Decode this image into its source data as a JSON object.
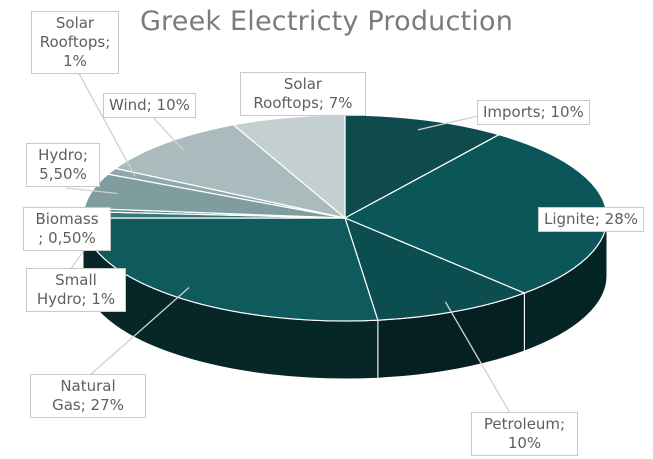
{
  "chart_data": {
    "type": "pie",
    "title": "Greek Electricty Production",
    "slices": [
      {
        "label": "Imports; 10%",
        "value": 10,
        "color": "#0f4a4c"
      },
      {
        "label": "Lignite; 28%",
        "value": 28,
        "color": "#0a5659"
      },
      {
        "label": "Petroleum; 10%",
        "value": 10,
        "color": "#0c4d50"
      },
      {
        "label": "Natural Gas; 27%",
        "value": 27,
        "color": "#0e5a5d"
      },
      {
        "label": "Small Hydro; 1%",
        "value": 1,
        "color": "#36787a"
      },
      {
        "label": "Biomass ; 0,50%",
        "value": 0.5,
        "color": "#508385"
      },
      {
        "label": "Hydro; 5,50%",
        "value": 5.5,
        "color": "#7f9c9e"
      },
      {
        "label": "Solar Rooftops; 1%",
        "value": 1,
        "color": "#90a8aa"
      },
      {
        "label": "Wind; 10%",
        "value": 10,
        "color": "#a9bbbd"
      },
      {
        "label": "Solar Rooftops; 7%",
        "value": 7,
        "color": "#c3cfd0"
      }
    ]
  }
}
